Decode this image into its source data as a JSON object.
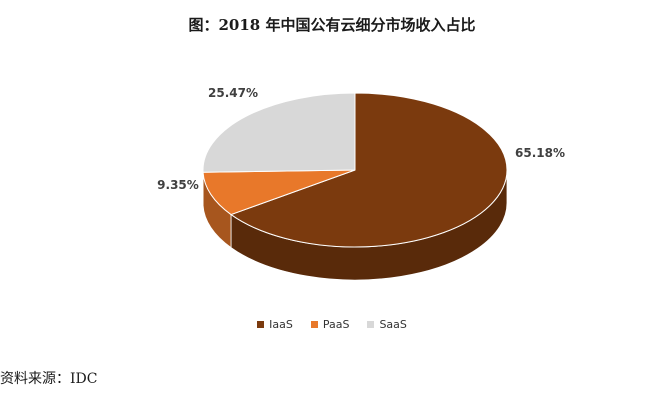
{
  "title": "图：2018 年中国公有云细分市场收入占比",
  "source": "资料来源：IDC",
  "chart_data": {
    "type": "pie",
    "title": "图：2018 年中国公有云细分市场收入占比",
    "categories": [
      "IaaS",
      "PaaS",
      "SaaS"
    ],
    "values": [
      65.18,
      9.35,
      25.47
    ],
    "labels": [
      "65.18%",
      "9.35%",
      "25.47%"
    ],
    "colors": [
      "#7B3A0E",
      "#E8782A",
      "#D8D8D8"
    ],
    "style": "3d",
    "legend_position": "bottom"
  }
}
